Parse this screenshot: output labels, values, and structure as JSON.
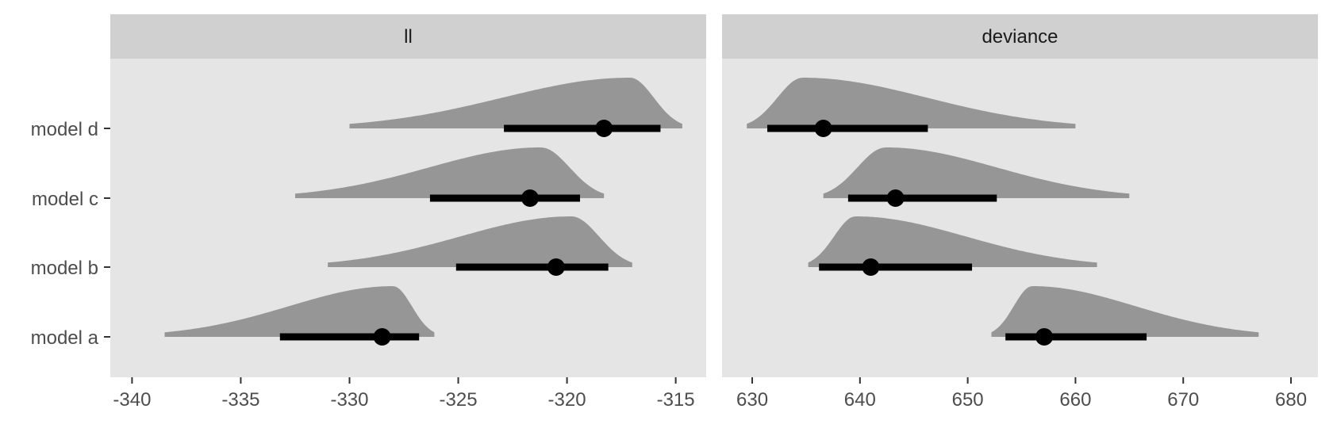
{
  "chart_data": {
    "type": "halfeye",
    "rows": [
      "model a",
      "model b",
      "model c",
      "model d"
    ],
    "colors": {
      "panel_bg": "#e5e5e5",
      "strip_bg": "#d0d0d0",
      "slab": "#969696",
      "interval": "#000000",
      "tick": "#333333"
    },
    "panels": [
      {
        "title": "ll",
        "xlim": [
          -341,
          -313.6
        ],
        "xticks": [
          -340,
          -335,
          -330,
          -325,
          -320,
          -315
        ],
        "series": [
          {
            "name": "model a",
            "point": -328.5,
            "interval": [
              -333.2,
              -326.8
            ],
            "range": [
              -338.5,
              -326.1
            ],
            "mode": -328.0
          },
          {
            "name": "model b",
            "point": -320.5,
            "interval": [
              -325.1,
              -318.1
            ],
            "range": [
              -331.0,
              -317.0
            ],
            "mode": -319.8
          },
          {
            "name": "model c",
            "point": -321.7,
            "interval": [
              -326.3,
              -319.4
            ],
            "range": [
              -332.5,
              -318.3
            ],
            "mode": -321.2
          },
          {
            "name": "model d",
            "point": -318.3,
            "interval": [
              -322.9,
              -315.7
            ],
            "range": [
              -330.0,
              -314.7
            ],
            "mode": -317.1
          }
        ]
      },
      {
        "title": "deviance",
        "xlim": [
          627.2,
          682.5
        ],
        "xticks": [
          630,
          640,
          650,
          660,
          670,
          680
        ],
        "series": [
          {
            "name": "model a",
            "point": 657.1,
            "interval": [
              653.5,
              666.6
            ],
            "range": [
              652.2,
              677.0
            ],
            "mode": 656.0
          },
          {
            "name": "model b",
            "point": 641.0,
            "interval": [
              636.2,
              650.4
            ],
            "range": [
              635.2,
              662.0
            ],
            "mode": 639.6
          },
          {
            "name": "model c",
            "point": 643.3,
            "interval": [
              638.9,
              652.7
            ],
            "range": [
              636.6,
              665.0
            ],
            "mode": 642.4
          },
          {
            "name": "model d",
            "point": 636.6,
            "interval": [
              631.4,
              646.3
            ],
            "range": [
              629.5,
              660.0
            ],
            "mode": 634.7
          }
        ]
      }
    ]
  }
}
